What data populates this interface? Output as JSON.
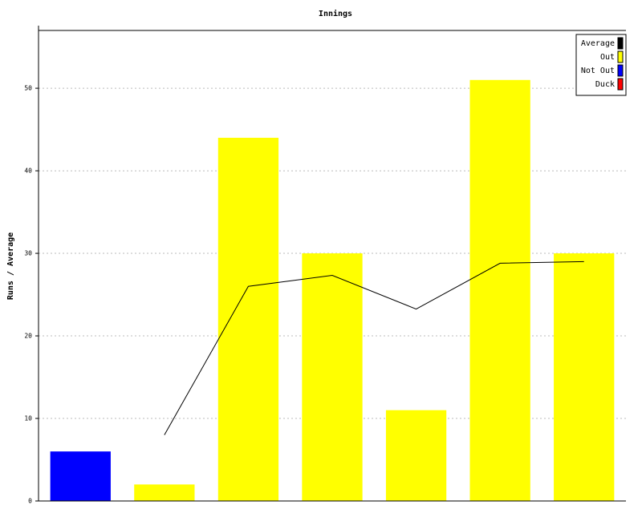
{
  "chart_data": {
    "type": "bar",
    "title": "Innings",
    "ylabel": "Runs / Average",
    "categories": [
      null,
      null,
      null,
      null,
      null,
      null,
      null
    ],
    "series": [
      {
        "name": "Average",
        "type": "line",
        "color": "#000000",
        "values": [
          null,
          8,
          26,
          27.33,
          23.25,
          28.8,
          29
        ]
      },
      {
        "name": "Out",
        "color": "#ffff00",
        "values": [
          null,
          2,
          44,
          30,
          11,
          51,
          30
        ]
      },
      {
        "name": "Not Out",
        "color": "#0000ff",
        "values": [
          6,
          null,
          null,
          null,
          null,
          null,
          null
        ]
      },
      {
        "name": "Duck",
        "color": "#ff0000",
        "values": [
          null,
          null,
          null,
          null,
          null,
          null,
          null
        ]
      }
    ],
    "ylim": [
      0,
      57
    ],
    "yticks": [
      0,
      10,
      20,
      30,
      40,
      50
    ],
    "grid": true,
    "legend": "upper-right"
  }
}
